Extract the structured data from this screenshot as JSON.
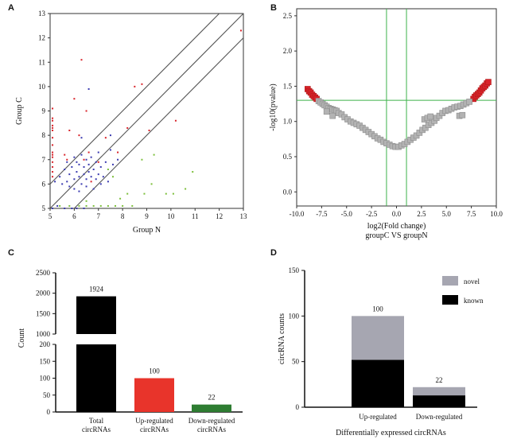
{
  "panels": {
    "a": "A",
    "b": "B",
    "c": "C",
    "d": "D"
  },
  "chart_data": [
    {
      "panel": "A",
      "type": "scatter",
      "xlabel": "Group N",
      "ylabel": "Group C",
      "xlim": [
        5,
        13
      ],
      "ylim": [
        5,
        13
      ],
      "xticks": [
        "5",
        "6",
        "7",
        "8",
        "9",
        "10",
        "11",
        "12",
        "13"
      ],
      "yticks": [
        "5",
        "6",
        "7",
        "8",
        "9",
        "10",
        "11",
        "12",
        "13"
      ],
      "colors": {
        "up": "#d9232a",
        "down": "#7cbf3a",
        "other": "#3a3ab0",
        "lines": "#555555"
      },
      "fold_lines": [
        {
          "points": [
            [
              5,
              6
            ],
            [
              12,
              13
            ]
          ]
        },
        {
          "points": [
            [
              5,
              5
            ],
            [
              13,
              13
            ]
          ]
        },
        {
          "points": [
            [
              6,
              5
            ],
            [
              13,
              12
            ]
          ]
        }
      ],
      "series": [
        {
          "group": "up",
          "points": [
            [
              5.1,
              9.1
            ],
            [
              5.1,
              8.7
            ],
            [
              5.1,
              8.6
            ],
            [
              5.1,
              8.4
            ],
            [
              5.1,
              8.3
            ],
            [
              5.1,
              8.2
            ],
            [
              5.1,
              7.9
            ],
            [
              5.1,
              7.6
            ],
            [
              5.1,
              7.3
            ],
            [
              5.1,
              7.2
            ],
            [
              5.1,
              7.1
            ],
            [
              5.1,
              6.9
            ],
            [
              5.1,
              6.7
            ],
            [
              5.1,
              6.5
            ],
            [
              5.1,
              6.3
            ],
            [
              5.6,
              7.2
            ],
            [
              5.7,
              7.0
            ],
            [
              6.0,
              9.5
            ],
            [
              6.2,
              8.0
            ],
            [
              6.5,
              9.0
            ],
            [
              6.6,
              7.3
            ],
            [
              6.7,
              6.1
            ],
            [
              7.0,
              6.9
            ],
            [
              7.3,
              7.9
            ],
            [
              7.8,
              7.3
            ],
            [
              8.2,
              8.3
            ],
            [
              8.5,
              10.0
            ],
            [
              8.8,
              10.1
            ],
            [
              9.1,
              8.2
            ],
            [
              10.2,
              8.6
            ],
            [
              12.9,
              12.3
            ],
            [
              6.3,
              11.1
            ],
            [
              6.4,
              7.0
            ],
            [
              5.8,
              8.2
            ]
          ]
        },
        {
          "group": "down",
          "points": [
            [
              5.4,
              5.1
            ],
            [
              5.8,
              5.1
            ],
            [
              6.2,
              5.1
            ],
            [
              6.5,
              5.1
            ],
            [
              6.8,
              5.1
            ],
            [
              7.1,
              5.1
            ],
            [
              7.4,
              5.1
            ],
            [
              7.7,
              5.1
            ],
            [
              8.0,
              5.1
            ],
            [
              8.4,
              5.1
            ],
            [
              7.9,
              5.4
            ],
            [
              8.2,
              5.6
            ],
            [
              7.6,
              6.3
            ],
            [
              8.9,
              5.6
            ],
            [
              9.2,
              6.0
            ],
            [
              9.8,
              5.6
            ],
            [
              10.1,
              5.6
            ],
            [
              10.6,
              5.8
            ],
            [
              10.9,
              6.5
            ],
            [
              9.3,
              7.2
            ],
            [
              8.8,
              7.0
            ],
            [
              7.4,
              6.6
            ],
            [
              6.5,
              5.3
            ]
          ]
        },
        {
          "group": "other",
          "points": [
            [
              5.1,
              5.0
            ],
            [
              5.3,
              5.1
            ],
            [
              5.6,
              5.0
            ],
            [
              5.9,
              5.0
            ],
            [
              6.1,
              5.0
            ],
            [
              6.4,
              5.0
            ],
            [
              5.2,
              6.1
            ],
            [
              5.4,
              6.3
            ],
            [
              5.5,
              6.0
            ],
            [
              5.6,
              6.6
            ],
            [
              5.7,
              6.1
            ],
            [
              5.7,
              6.9
            ],
            [
              5.8,
              5.9
            ],
            [
              5.8,
              6.4
            ],
            [
              5.9,
              6.7
            ],
            [
              6.0,
              5.8
            ],
            [
              6.0,
              6.2
            ],
            [
              6.0,
              7.1
            ],
            [
              6.1,
              6.5
            ],
            [
              6.1,
              6.9
            ],
            [
              6.2,
              5.7
            ],
            [
              6.2,
              6.3
            ],
            [
              6.2,
              6.8
            ],
            [
              6.3,
              6.0
            ],
            [
              6.3,
              7.2
            ],
            [
              6.4,
              6.4
            ],
            [
              6.4,
              6.7
            ],
            [
              6.5,
              5.9
            ],
            [
              6.5,
              6.2
            ],
            [
              6.5,
              7.0
            ],
            [
              6.6,
              6.5
            ],
            [
              6.6,
              6.8
            ],
            [
              6.7,
              6.3
            ],
            [
              6.7,
              7.1
            ],
            [
              6.8,
              5.8
            ],
            [
              6.8,
              6.6
            ],
            [
              6.9,
              6.2
            ],
            [
              6.9,
              6.9
            ],
            [
              7.0,
              6.4
            ],
            [
              7.0,
              7.3
            ],
            [
              7.1,
              6.0
            ],
            [
              7.1,
              6.7
            ],
            [
              7.2,
              6.3
            ],
            [
              7.3,
              6.9
            ],
            [
              7.4,
              6.1
            ],
            [
              7.5,
              7.4
            ],
            [
              7.6,
              6.8
            ],
            [
              7.8,
              7.0
            ],
            [
              6.3,
              7.9
            ],
            [
              7.5,
              8.0
            ],
            [
              6.6,
              9.9
            ]
          ]
        }
      ]
    },
    {
      "panel": "B",
      "type": "scatter",
      "xlabel": "log2(Fold change)",
      "xlabel2": "groupC VS groupN",
      "ylabel": "-log10(pvalue)",
      "xlim": [
        -10,
        10
      ],
      "ylim": [
        -0.2,
        2.6
      ],
      "xticks": [
        "-10.0",
        "-7.5",
        "-5.0",
        "-2.5",
        "0.0",
        "2.5",
        "5.0",
        "7.5",
        "10.0"
      ],
      "yticks": [
        "0.0",
        "0.5",
        "1.0",
        "1.5",
        "2.0",
        "2.5"
      ],
      "thresholds": {
        "x": [
          -1,
          1
        ],
        "y": 1.3
      },
      "colors": {
        "significant": "#d9232a",
        "not_significant": "#b3b3b3",
        "threshold": "#3db24a"
      },
      "series": [
        {
          "group": "significant",
          "points": [
            [
              -8.9,
              1.46
            ],
            [
              -8.75,
              1.43
            ],
            [
              -8.6,
              1.41
            ],
            [
              -8.45,
              1.38
            ],
            [
              -8.3,
              1.36
            ],
            [
              -8.15,
              1.34
            ],
            [
              -8.0,
              1.32
            ],
            [
              7.7,
              1.32
            ],
            [
              7.85,
              1.35
            ],
            [
              8.0,
              1.37
            ],
            [
              8.15,
              1.39
            ],
            [
              8.3,
              1.41
            ],
            [
              8.45,
              1.44
            ],
            [
              8.6,
              1.47
            ],
            [
              8.75,
              1.49
            ],
            [
              8.9,
              1.51
            ],
            [
              9.05,
              1.54
            ],
            [
              9.2,
              1.56
            ]
          ]
        },
        {
          "group": "not_significant",
          "points": [
            [
              -7.8,
              1.29
            ],
            [
              -7.6,
              1.27
            ],
            [
              -7.4,
              1.25
            ],
            [
              -7.2,
              1.23
            ],
            [
              -7.0,
              1.21
            ],
            [
              -6.8,
              1.19
            ],
            [
              -6.6,
              1.18
            ],
            [
              -6.4,
              1.17
            ],
            [
              -6.2,
              1.16
            ],
            [
              -6.0,
              1.15
            ],
            [
              -5.8,
              1.12
            ],
            [
              -5.5,
              1.1
            ],
            [
              -7.0,
              1.14
            ],
            [
              -6.4,
              1.08
            ],
            [
              -5.2,
              1.06
            ],
            [
              -4.9,
              1.03
            ],
            [
              -4.6,
              1.0
            ],
            [
              -4.3,
              0.98
            ],
            [
              -4.0,
              0.96
            ],
            [
              -3.7,
              0.94
            ],
            [
              -3.4,
              0.91
            ],
            [
              -3.1,
              0.88
            ],
            [
              -2.8,
              0.85
            ],
            [
              -2.5,
              0.82
            ],
            [
              -2.2,
              0.79
            ],
            [
              -1.9,
              0.76
            ],
            [
              -1.6,
              0.74
            ],
            [
              -1.3,
              0.71
            ],
            [
              -1.0,
              0.69
            ],
            [
              -0.7,
              0.67
            ],
            [
              -0.4,
              0.65
            ],
            [
              -0.1,
              0.64
            ],
            [
              0.2,
              0.64
            ],
            [
              0.5,
              0.66
            ],
            [
              0.8,
              0.68
            ],
            [
              1.1,
              0.71
            ],
            [
              1.4,
              0.74
            ],
            [
              1.7,
              0.77
            ],
            [
              2.0,
              0.8
            ],
            [
              2.3,
              0.84
            ],
            [
              2.6,
              0.88
            ],
            [
              2.9,
              0.91
            ],
            [
              3.2,
              0.95
            ],
            [
              3.5,
              0.98
            ],
            [
              3.8,
              1.01
            ],
            [
              4.0,
              1.05
            ],
            [
              4.3,
              1.08
            ],
            [
              4.6,
              1.12
            ],
            [
              4.9,
              1.15
            ],
            [
              5.2,
              1.16
            ],
            [
              5.5,
              1.18
            ],
            [
              5.8,
              1.2
            ],
            [
              6.1,
              1.21
            ],
            [
              6.4,
              1.22
            ],
            [
              6.7,
              1.24
            ],
            [
              7.0,
              1.26
            ],
            [
              7.3,
              1.28
            ],
            [
              6.3,
              1.08
            ],
            [
              6.6,
              1.09
            ],
            [
              2.8,
              1.03
            ],
            [
              3.1,
              1.05
            ],
            [
              3.4,
              1.07
            ]
          ]
        }
      ]
    },
    {
      "panel": "C",
      "type": "bar",
      "ylabel": "Count",
      "categories": [
        [
          "Total",
          "circRNAs"
        ],
        [
          "Up-regulated",
          "circRNAs"
        ],
        [
          "Down-regulated",
          "circRNAs"
        ]
      ],
      "values": [
        1924,
        100,
        22
      ],
      "data_labels": [
        "1924",
        "100",
        "22"
      ],
      "colors": [
        "#000000",
        "#e8342b",
        "#2e7d32"
      ],
      "axis_break": {
        "lower": [
          0,
          200
        ],
        "upper": [
          1000,
          2500
        ]
      },
      "yticks_lower": [
        "0",
        "50",
        "100",
        "150",
        "200"
      ],
      "yticks_upper": [
        "1000",
        "1500",
        "2000",
        "2500"
      ]
    },
    {
      "panel": "D",
      "type": "bar",
      "stacked": true,
      "xlabel": "Differentially expressed circRNAs",
      "ylabel": "circRNA counts",
      "categories": [
        "Up-regulated",
        "Down-regulated"
      ],
      "series": [
        {
          "name": "known",
          "values": [
            52,
            13
          ],
          "color": "#000000"
        },
        {
          "name": "novel",
          "values": [
            48,
            9
          ],
          "color": "#a6a6b1"
        }
      ],
      "totals": [
        "100",
        "22"
      ],
      "ylim": [
        0,
        150
      ],
      "yticks": [
        "0",
        "50",
        "100",
        "150"
      ],
      "legend_position": "top-right"
    }
  ]
}
